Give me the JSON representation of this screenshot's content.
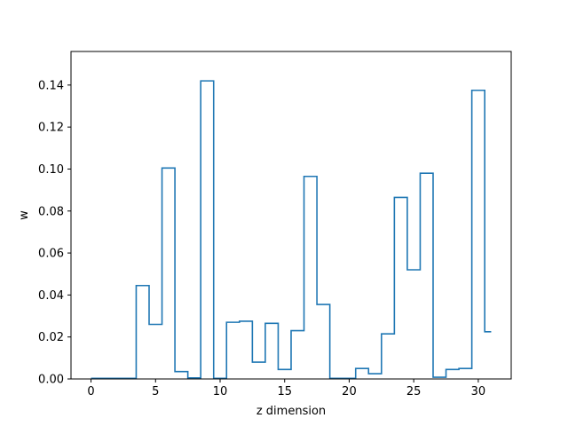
{
  "chart_data": {
    "type": "line",
    "drawstyle": "steps-mid",
    "xlabel": "z dimension",
    "ylabel": "w",
    "xlim": [
      -1.55,
      32.55
    ],
    "ylim": [
      0,
      0.156
    ],
    "xticks": [
      0,
      5,
      10,
      15,
      20,
      25,
      30
    ],
    "xtick_labels": [
      "0",
      "5",
      "10",
      "15",
      "20",
      "25",
      "30"
    ],
    "yticks": [
      0,
      0.02,
      0.04,
      0.06,
      0.08,
      0.1,
      0.12,
      0.14
    ],
    "ytick_labels": [
      "0.00",
      "0.02",
      "0.04",
      "0.06",
      "0.08",
      "0.10",
      "0.12",
      "0.14"
    ],
    "grid": false,
    "series": [
      {
        "color": "#1f77b4",
        "x": [
          0,
          1,
          2,
          3,
          4,
          5,
          6,
          7,
          8,
          9,
          10,
          11,
          12,
          13,
          14,
          15,
          16,
          17,
          18,
          19,
          20,
          21,
          22,
          23,
          24,
          25,
          26,
          27,
          28,
          29,
          30,
          31
        ],
        "y": [
          0.0003,
          0.0003,
          0.0003,
          0.0003,
          0.0445,
          0.026,
          0.1005,
          0.0035,
          0.0005,
          0.142,
          0.0003,
          0.027,
          0.0275,
          0.008,
          0.0265,
          0.0045,
          0.023,
          0.0965,
          0.0355,
          0.0003,
          0.0003,
          0.005,
          0.0025,
          0.0215,
          0.0865,
          0.052,
          0.098,
          0.0008,
          0.0045,
          0.005,
          0.1375,
          0.0225
        ]
      }
    ]
  }
}
